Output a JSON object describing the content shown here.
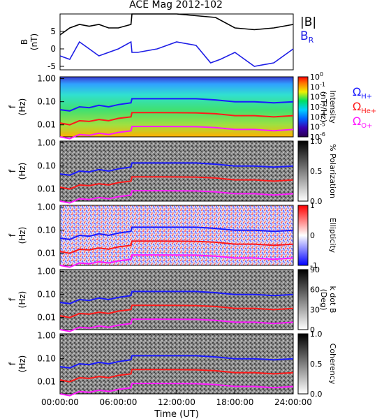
{
  "title": "ACE Mag 2012-102",
  "legend": {
    "b_total": "|B|",
    "b_r_main": "B",
    "b_r_sub": "R"
  },
  "colors": {
    "b_total": "#000000",
    "b_r": "#1e1ee6",
    "h_plus": "#1a1aff",
    "he_plus": "#ff1a1a",
    "o_plus": "#ff1aff"
  },
  "x_axis": {
    "label": "Time (UT)",
    "ticks": [
      "00:00:00",
      "06:00:00",
      "12:00:00",
      "18:00:00",
      "24:00:00"
    ],
    "range_hours": [
      0,
      24
    ]
  },
  "freq_axis": {
    "label_main": "f",
    "label_sub": "(Hz)",
    "ticks": [
      "1.00",
      "0.10",
      "0.01"
    ]
  },
  "gyro_legend": [
    {
      "main": "Ω",
      "sub": "H+",
      "color": "#1a1aff"
    },
    {
      "main": "Ω",
      "sub": "He+",
      "color": "#ff1a1a"
    },
    {
      "main": "Ω",
      "sub": "O+",
      "color": "#ff1aff"
    }
  ],
  "panels": {
    "b": {
      "ylabel_main": "B",
      "ylabel_sub": "(nT)",
      "yticks": [
        "5",
        "0",
        "-5"
      ]
    },
    "intensity": {
      "cb_label_main": "Intensity",
      "cb_label_sub": "(nT²/Hz)",
      "cb_ticks": [
        {
          "base": "10",
          "exp": "0"
        },
        {
          "base": "10",
          "exp": "-1"
        },
        {
          "base": "10",
          "exp": "-2"
        },
        {
          "base": "10",
          "exp": "-3"
        },
        {
          "base": "10",
          "exp": "-4"
        },
        {
          "base": "10",
          "exp": "-5"
        },
        {
          "base": "10",
          "exp": "-6"
        }
      ]
    },
    "polarization": {
      "cb_label": "% Polarization",
      "cb_ticks": [
        "1.0",
        "0.5",
        "0.0"
      ]
    },
    "ellipticity": {
      "cb_label": "Ellipticity",
      "cb_ticks": [
        "1",
        "0",
        "-1"
      ]
    },
    "kdotb": {
      "cb_label_main": "k dot B",
      "cb_label_sub": "(Deg)",
      "cb_ticks": [
        "90",
        "60",
        "30",
        "0"
      ]
    },
    "coherency": {
      "cb_label": "Coherency",
      "cb_ticks": [
        "1.0",
        "0.5",
        "0.0"
      ]
    }
  },
  "chart_data": {
    "type": "line",
    "x_unit": "hours UT",
    "series_b": [
      {
        "name": "|B|",
        "x": [
          0,
          1,
          2,
          3,
          4,
          5,
          6,
          7.3,
          7.4,
          8,
          10,
          12,
          14,
          16,
          18,
          20,
          22,
          24
        ],
        "values": [
          4,
          6,
          7,
          6.5,
          7,
          6,
          6,
          7,
          10,
          10,
          10,
          10,
          9.5,
          9,
          6,
          5.5,
          6,
          7
        ]
      },
      {
        "name": "B_R",
        "x": [
          0,
          1,
          2,
          3,
          4,
          5,
          6,
          7.3,
          7.4,
          8,
          10,
          12,
          14,
          15.5,
          16.5,
          18,
          20,
          22,
          24
        ],
        "values": [
          -2,
          -3,
          2,
          0,
          -2,
          -1,
          0,
          2,
          -1,
          -1,
          0,
          2,
          1,
          -4,
          -3,
          -1,
          -5,
          -4,
          0
        ]
      }
    ],
    "gyrofrequencies_hz": [
      {
        "name": "Ω H+",
        "x": [
          0,
          1,
          2,
          3,
          4,
          5,
          6,
          7.3,
          7.4,
          10,
          14,
          16,
          18,
          20,
          22,
          24
        ],
        "values": [
          0.045,
          0.04,
          0.06,
          0.055,
          0.07,
          0.06,
          0.075,
          0.09,
          0.135,
          0.135,
          0.135,
          0.12,
          0.1,
          0.1,
          0.09,
          0.1
        ]
      },
      {
        "name": "Ω He+",
        "x": [
          0,
          1,
          2,
          3,
          4,
          5,
          6,
          7.3,
          7.4,
          10,
          14,
          16,
          18,
          20,
          22,
          24
        ],
        "values": [
          0.012,
          0.01,
          0.015,
          0.014,
          0.017,
          0.015,
          0.019,
          0.022,
          0.034,
          0.034,
          0.033,
          0.03,
          0.025,
          0.025,
          0.022,
          0.025
        ]
      },
      {
        "name": "Ω O+",
        "x": [
          0,
          1,
          2,
          3,
          4,
          5,
          6,
          7.3,
          7.4,
          10,
          14,
          16,
          18,
          20,
          22,
          24
        ],
        "values": [
          0.003,
          0.0025,
          0.0038,
          0.0035,
          0.0043,
          0.0038,
          0.0047,
          0.0055,
          0.0085,
          0.0085,
          0.0083,
          0.0075,
          0.0063,
          0.0063,
          0.0055,
          0.0063
        ]
      }
    ],
    "y_b_range": [
      -6,
      10
    ],
    "y_freq_range_hz": [
      0.003,
      1.2
    ]
  }
}
